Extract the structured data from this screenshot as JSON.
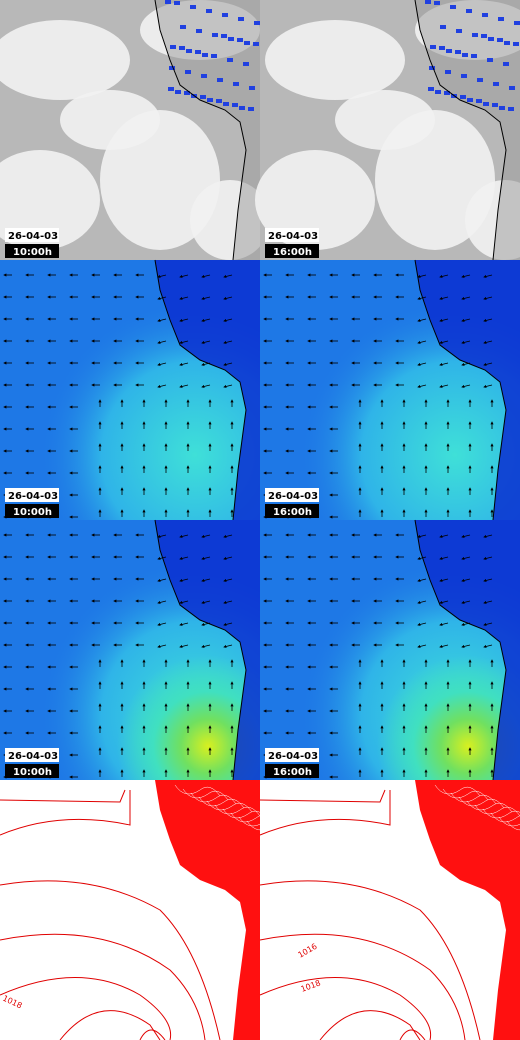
{
  "panels": [
    {
      "date": "26-04-03",
      "time": "10:00h"
    },
    {
      "date": "26-04-03",
      "time": "16:00h"
    },
    {
      "date": "26-04-03",
      "time": "10:00h"
    },
    {
      "date": "26-04-03",
      "time": "16:00h"
    },
    {
      "date": "26-04-03",
      "time": "10:00h"
    },
    {
      "date": "26-04-03",
      "time": "16:00h"
    }
  ],
  "isobar_labels": [
    "1018",
    "1016",
    "1018"
  ]
}
